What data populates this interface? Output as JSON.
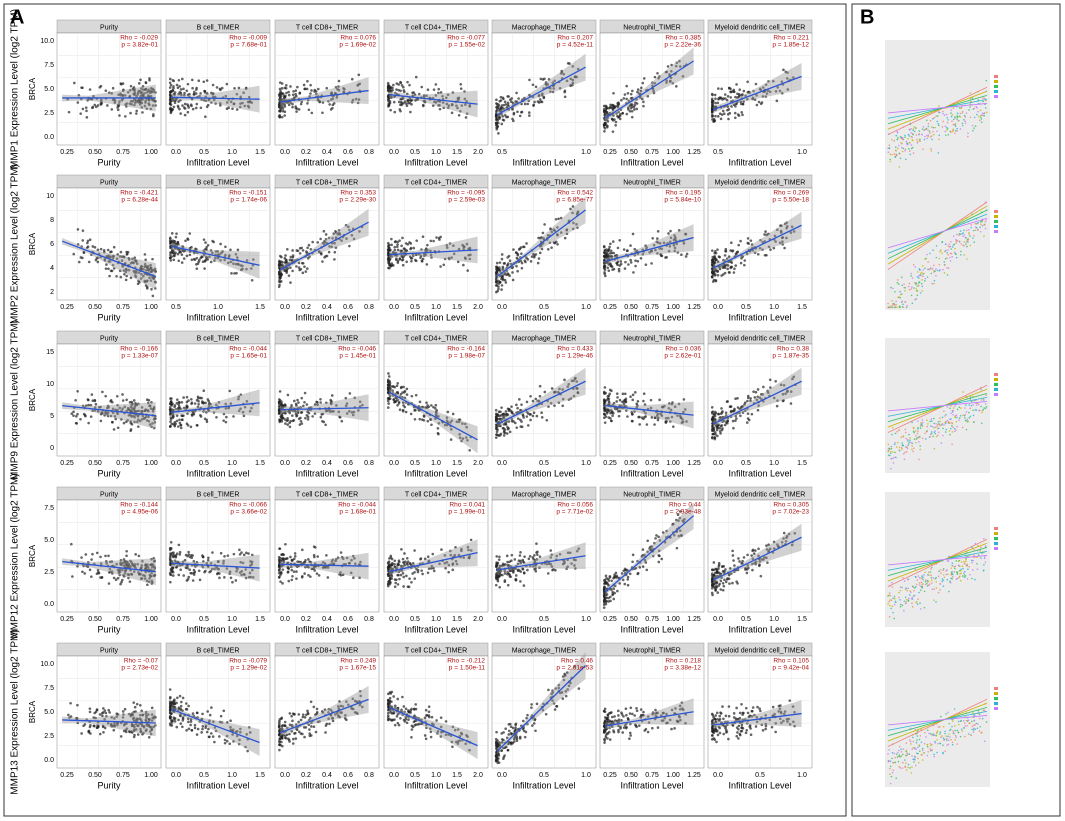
{
  "panel_labels": [
    "A",
    "B"
  ],
  "columns": [
    {
      "title": "Purity",
      "xlabel": "Purity"
    },
    {
      "title": "B cell_TIMER",
      "xlabel": "Infiltration Level"
    },
    {
      "title": "T cell CD8+_TIMER",
      "xlabel": "Infiltration Level"
    },
    {
      "title": "T cell CD4+_TIMER",
      "xlabel": "Infiltration Level"
    },
    {
      "title": "Macrophage_TIMER",
      "xlabel": "Infiltration Level"
    },
    {
      "title": "Neutrophil_TIMER",
      "xlabel": "Infiltration Level"
    },
    {
      "title": "Myeloid dendritic cell_TIMER",
      "xlabel": "Infiltration Level"
    }
  ],
  "rows": [
    {
      "gene_label": "MMP1 Expression Level (log2 TPM)",
      "cancer": "BRCA",
      "yticks": [
        "0.0",
        "2.5",
        "5.0",
        "7.5",
        "10.0"
      ],
      "panels": [
        {
          "rho": "Rho = -0.029",
          "p": "p = 3.82e-01",
          "xticks": [
            "0.25",
            "0.50",
            "0.75",
            "1.00"
          ]
        },
        {
          "rho": "Rho = -0.009",
          "p": "p = 7.68e-01",
          "xticks": [
            "0.0",
            "0.5",
            "1.0",
            "1.5"
          ]
        },
        {
          "rho": "Rho = 0.076",
          "p": "p = 1.69e-02",
          "xticks": [
            "0.0",
            "0.2",
            "0.4",
            "0.6",
            "0.8"
          ]
        },
        {
          "rho": "Rho = -0.077",
          "p": "p = 1.55e-02",
          "xticks": [
            "0.0",
            "0.5",
            "1.0",
            "1.5",
            "2.0"
          ]
        },
        {
          "rho": "Rho = 0.207",
          "p": "p = 4.52e-11",
          "xticks": [
            "0.5",
            "1.0"
          ]
        },
        {
          "rho": "Rho = 0.385",
          "p": "p = 2.22e-36",
          "xticks": [
            "0.25",
            "0.50",
            "0.75",
            "1.00",
            "1.25"
          ]
        },
        {
          "rho": "Rho = 0.221",
          "p": "p = 1.85e-12",
          "xticks": [
            "0.5",
            "1.0"
          ]
        }
      ]
    },
    {
      "gene_label": "MMP2 Expression Level (log2 TPM)",
      "cancer": "BRCA",
      "yticks": [
        "2",
        "4",
        "6",
        "8",
        "10"
      ],
      "panels": [
        {
          "rho": "Rho = -0.421",
          "p": "p = 6.28e-44",
          "xticks": [
            "0.25",
            "0.50",
            "0.75",
            "1.00"
          ]
        },
        {
          "rho": "Rho = -0.151",
          "p": "p = 1.74e-06",
          "xticks": [
            "0.5",
            "1.0",
            "1.5"
          ]
        },
        {
          "rho": "Rho = 0.353",
          "p": "p = 2.29e-30",
          "xticks": [
            "0.0",
            "0.2",
            "0.4",
            "0.6",
            "0.8"
          ]
        },
        {
          "rho": "Rho = -0.095",
          "p": "p = 2.59e-03",
          "xticks": [
            "0.0",
            "0.5",
            "1.0",
            "1.5",
            "2.0"
          ]
        },
        {
          "rho": "Rho = 0.542",
          "p": "p = 6.85e-77",
          "xticks": [
            "0.0",
            "0.5",
            "1.0"
          ]
        },
        {
          "rho": "Rho = 0.195",
          "p": "p = 5.84e-10",
          "xticks": [
            "0.25",
            "0.50",
            "0.75",
            "1.00",
            "1.25"
          ]
        },
        {
          "rho": "Rho = 0.269",
          "p": "p = 5.50e-18",
          "xticks": [
            "0.0",
            "0.5",
            "1.0",
            "1.5"
          ]
        }
      ]
    },
    {
      "gene_label": "MMP9 Expression Level (log2 TPM)",
      "cancer": "BRCA",
      "yticks": [
        "0",
        "5",
        "10",
        "15"
      ],
      "panels": [
        {
          "rho": "Rho = -0.166",
          "p": "p = 1.33e-07",
          "xticks": [
            "0.25",
            "0.50",
            "0.75",
            "1.00"
          ]
        },
        {
          "rho": "Rho = -0.044",
          "p": "p = 1.65e-01",
          "xticks": [
            "0.0",
            "0.5",
            "1.0",
            "1.5"
          ]
        },
        {
          "rho": "Rho = -0.046",
          "p": "p = 1.45e-01",
          "xticks": [
            "0.0",
            "0.2",
            "0.4",
            "0.6",
            "0.8"
          ]
        },
        {
          "rho": "Rho = -0.164",
          "p": "p = 1.98e-07",
          "xticks": [
            "0.0",
            "0.5",
            "1.0",
            "1.5",
            "2.0"
          ]
        },
        {
          "rho": "Rho = 0.433",
          "p": "p = 1.29e-46",
          "xticks": [
            "0.0",
            "0.5",
            "1.0"
          ]
        },
        {
          "rho": "Rho = 0.036",
          "p": "p = 2.62e-01",
          "xticks": [
            "0.25",
            "0.50",
            "0.75",
            "1.00",
            "1.25"
          ]
        },
        {
          "rho": "Rho = 0.38",
          "p": "p = 1.87e-35",
          "xticks": [
            "0.0",
            "0.5",
            "1.0",
            "1.5"
          ]
        }
      ]
    },
    {
      "gene_label": "MMP12 Expression Level (log2 TPM)",
      "cancer": "BRCA",
      "yticks": [
        "0.0",
        "2.5",
        "5.0",
        "7.5"
      ],
      "panels": [
        {
          "rho": "Rho = -0.144",
          "p": "p = 4.95e-06",
          "xticks": [
            "0.25",
            "0.50",
            "0.75",
            "1.00"
          ]
        },
        {
          "rho": "Rho = -0.066",
          "p": "p = 3.66e-02",
          "xticks": [
            "0.0",
            "0.5",
            "1.0",
            "1.5"
          ]
        },
        {
          "rho": "Rho = -0.044",
          "p": "p = 1.68e-01",
          "xticks": [
            "0.0",
            "0.2",
            "0.4",
            "0.6",
            "0.8"
          ]
        },
        {
          "rho": "Rho = 0.041",
          "p": "p = 1.99e-01",
          "xticks": [
            "0.0",
            "0.5",
            "1.0",
            "1.5",
            "2.0"
          ]
        },
        {
          "rho": "Rho = 0.056",
          "p": "p = 7.71e-02",
          "xticks": [
            "0.0",
            "0.5",
            "1.0"
          ]
        },
        {
          "rho": "Rho = 0.44",
          "p": "p = 2.93e-48",
          "xticks": [
            "0.25",
            "0.50",
            "0.75",
            "1.00",
            "1.25"
          ]
        },
        {
          "rho": "Rho = 0.305",
          "p": "p = 7.02e-23",
          "xticks": [
            "0.0",
            "0.5",
            "1.0",
            "1.5"
          ]
        }
      ]
    },
    {
      "gene_label": "MMP13 Expression Level (log2 TPM)",
      "cancer": "BRCA",
      "yticks": [
        "0.0",
        "2.5",
        "5.0",
        "7.5",
        "10.0"
      ],
      "panels": [
        {
          "rho": "Rho = -0.07",
          "p": "p = 2.73e-02",
          "xticks": [
            "0.25",
            "0.50",
            "0.75",
            "1.00"
          ]
        },
        {
          "rho": "Rho = -0.079",
          "p": "p = 1.29e-02",
          "xticks": [
            "0.0",
            "0.5",
            "1.0",
            "1.5"
          ]
        },
        {
          "rho": "Rho = 0.249",
          "p": "p = 1.67e-15",
          "xticks": [
            "0.0",
            "0.2",
            "0.4",
            "0.6",
            "0.8"
          ]
        },
        {
          "rho": "Rho = -0.212",
          "p": "p = 1.50e-11",
          "xticks": [
            "0.0",
            "0.5",
            "1.0",
            "1.5",
            "2.0"
          ]
        },
        {
          "rho": "Rho = 0.46",
          "p": "p = 2.61e-53",
          "xticks": [
            "0.0",
            "0.5",
            "1.0"
          ]
        },
        {
          "rho": "Rho = 0.218",
          "p": "p = 3.38e-12",
          "xticks": [
            "0.25",
            "0.50",
            "0.75",
            "1.00",
            "1.25"
          ]
        },
        {
          "rho": "Rho = 0.105",
          "p": "p = 9.42e-04",
          "xticks": [
            "0.0",
            "0.5",
            "1.0"
          ]
        }
      ]
    }
  ]
}
